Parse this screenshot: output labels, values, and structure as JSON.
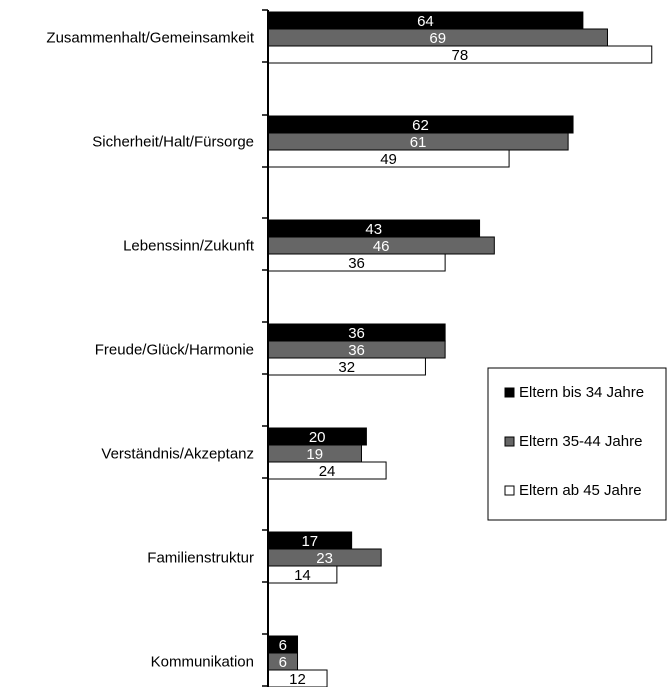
{
  "chart_data": {
    "type": "bar",
    "orientation": "horizontal",
    "categories": [
      "Zusammenhalt/Gemeinsamkeit",
      "Sicherheit/Halt/Fürsorge",
      "Lebenssinn/Zukunft",
      "Freude/Glück/Harmonie",
      "Verständnis/Akzeptanz",
      "Familienstruktur",
      "Kommunikation"
    ],
    "series": [
      {
        "name": "Eltern bis 34 Jahre",
        "color": "#000000",
        "label_color": "#ffffff",
        "values": [
          64,
          62,
          43,
          36,
          20,
          17,
          6
        ]
      },
      {
        "name": "Eltern 35-44 Jahre",
        "color": "#666666",
        "label_color": "#ffffff",
        "values": [
          69,
          61,
          46,
          36,
          19,
          23,
          6
        ]
      },
      {
        "name": "Eltern ab 45 Jahre",
        "color": "#ffffff",
        "label_color": "#000000",
        "values": [
          78,
          49,
          36,
          32,
          24,
          14,
          12
        ]
      }
    ],
    "xlim": [
      0,
      80
    ],
    "grid": false,
    "legend_position": "right"
  }
}
